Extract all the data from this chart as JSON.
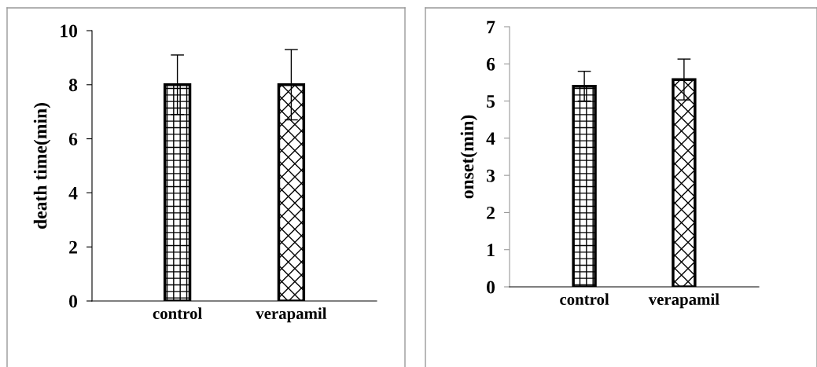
{
  "chart_data": [
    {
      "type": "bar",
      "categories": [
        "control",
        "verapamil"
      ],
      "ylabel": "death time(min)",
      "ylim": [
        0,
        10
      ],
      "yticks": [
        0,
        2,
        4,
        6,
        8,
        10
      ],
      "grid": false,
      "legend": false,
      "series": [
        {
          "values": [
            8.0,
            8.0
          ],
          "errors": [
            1.1,
            1.3
          ]
        }
      ]
    },
    {
      "type": "bar",
      "categories": [
        "control",
        "verapamil"
      ],
      "ylabel": "onset(min)",
      "ylim": [
        0,
        7
      ],
      "yticks": [
        0,
        1,
        2,
        3,
        4,
        5,
        6,
        7
      ],
      "grid": false,
      "legend": false,
      "series": [
        {
          "values": [
            5.4,
            5.58
          ],
          "errors": [
            0.4,
            0.55
          ]
        }
      ]
    }
  ]
}
